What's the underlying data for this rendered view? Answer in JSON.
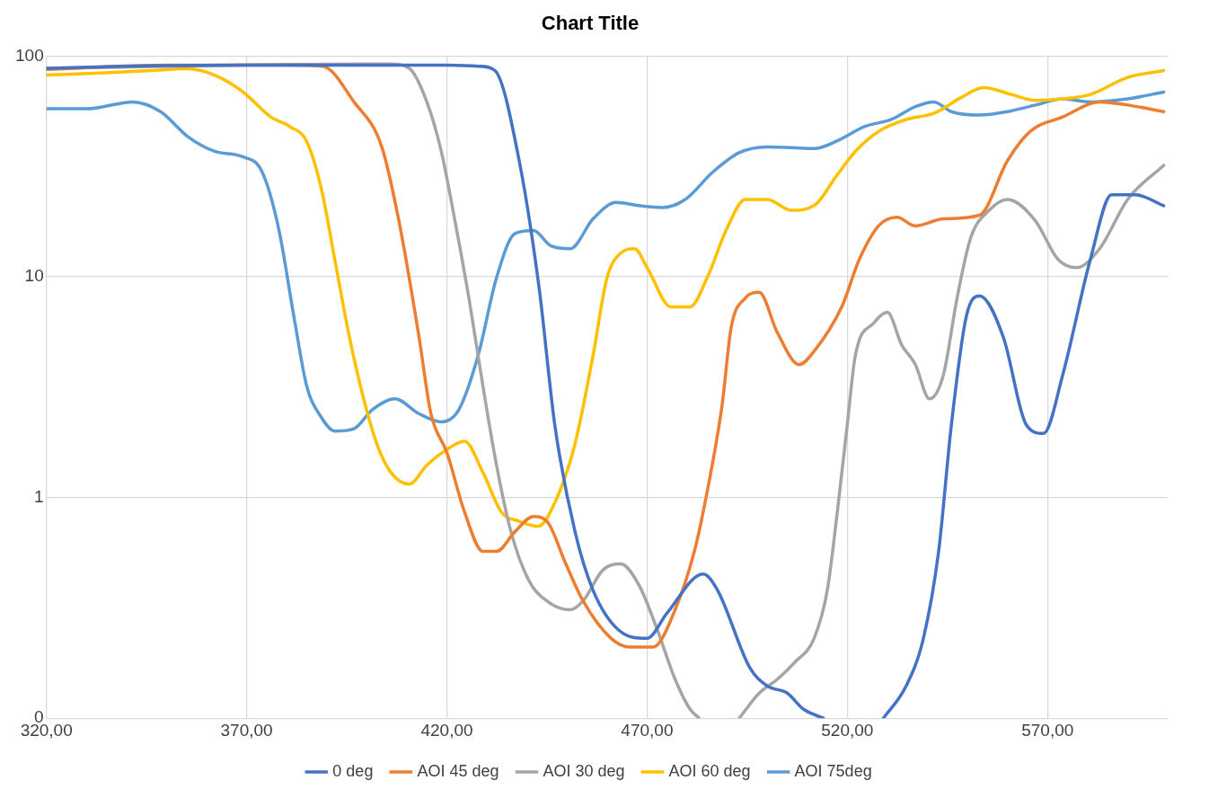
{
  "chart_data": {
    "type": "line",
    "title": "Chart Title",
    "log": "y",
    "grid": true,
    "legend": "bottom",
    "xlim": [
      320,
      600
    ],
    "xticks": [
      {
        "value": 320,
        "label": "320,00"
      },
      {
        "value": 370,
        "label": "370,00"
      },
      {
        "value": 420,
        "label": "420,00"
      },
      {
        "value": 470,
        "label": "470,00"
      },
      {
        "value": 520,
        "label": "520,00"
      },
      {
        "value": 570,
        "label": "570,00"
      }
    ],
    "ylim": [
      0.1,
      100
    ],
    "yticks": [
      {
        "value": 0.1,
        "label": "0"
      },
      1,
      10,
      100
    ],
    "series": [
      {
        "name": "0 deg",
        "color": "#4472c4",
        "x": [
          320,
          340,
          380,
          420,
          428,
          432,
          438,
          443,
          447,
          452,
          456.5,
          463,
          470,
          475,
          484,
          487.6,
          495.6,
          500,
          505,
          509,
          514,
          518,
          522,
          526,
          529,
          534.7,
          539,
          542.8,
          546,
          549.7,
          553,
          559,
          564.6,
          569,
          573.8,
          580.7,
          586,
          592,
          599
        ],
        "values": [
          88,
          90,
          91,
          91,
          90,
          86,
          34,
          9,
          2.1,
          0.7,
          0.38,
          0.25,
          0.23,
          0.3,
          0.45,
          0.38,
          0.17,
          0.14,
          0.13,
          0.11,
          0.1,
          null,
          null,
          null,
          0.1,
          0.14,
          0.23,
          0.57,
          2.15,
          6.6,
          8.2,
          5.3,
          2.15,
          1.95,
          3.6,
          12,
          23.5,
          23.5,
          21
        ]
      },
      {
        "name": "AOI 45 deg",
        "color": "#ed7d31",
        "x": [
          320,
          350,
          380,
          389,
          396.8,
          403.7,
          408,
          413,
          416,
          420,
          424.4,
          429,
          432.4,
          437,
          441.6,
          445,
          449.7,
          454,
          461,
          465.7,
          471.5,
          477,
          481.8,
          484,
          488.7,
          491,
          494.5,
          498,
          502.5,
          508,
          511.7,
          518.6,
          523,
          527.8,
          532.4,
          537,
          544,
          553,
          560,
          565.7,
          573.8,
          583,
          590,
          599
        ],
        "values": [
          87,
          91,
          91,
          90,
          62,
          39,
          18,
          5.4,
          2.4,
          1.6,
          0.86,
          0.57,
          0.57,
          0.7,
          0.82,
          0.78,
          0.5,
          0.34,
          0.23,
          0.21,
          0.21,
          0.31,
          0.57,
          0.86,
          2.6,
          5.9,
          8,
          8.5,
          5.6,
          4,
          4.6,
          7.3,
          12,
          17,
          18.6,
          17,
          18.3,
          19,
          33.6,
          45.6,
          53,
          62,
          60,
          56
        ]
      },
      {
        "name": "AOI 30 deg",
        "color": "#a5a5a5",
        "x": [
          320,
          400,
          406,
          410.6,
          415,
          418.6,
          422,
          425.5,
          429,
          432.4,
          436,
          440.5,
          446,
          450.8,
          454,
          459,
          463.4,
          468,
          472.6,
          477,
          480.7,
          483,
          486,
          490,
          493,
          498,
          502.5,
          507,
          511.7,
          515,
          517.5,
          520,
          522,
          526.7,
          530,
          533.6,
          537,
          540.5,
          544,
          547.4,
          550.8,
          555.4,
          560,
          566.9,
          572.6,
          577.2,
          583,
          590,
          599
        ],
        "values": [
          88,
          92,
          92,
          88,
          62,
          37,
          18,
          8,
          3.2,
          1.4,
          0.7,
          0.42,
          0.33,
          0.31,
          0.34,
          0.47,
          0.5,
          0.4,
          0.25,
          0.15,
          0.11,
          0.1,
          null,
          null,
          0.1,
          0.13,
          0.15,
          0.18,
          0.23,
          0.38,
          0.86,
          2.15,
          4.4,
          6.2,
          6.9,
          4.9,
          4,
          2.8,
          3.6,
          8,
          15,
          20,
          22.4,
          18,
          12,
          11,
          13.4,
          22.4,
          32
        ]
      },
      {
        "name": "AOI 60 deg",
        "color": "#ffc000",
        "x": [
          320,
          334.7,
          346,
          355,
          362,
          369,
          376,
          380.7,
          385,
          388.7,
          392,
          395.6,
          399,
          402.5,
          406,
          410.6,
          415,
          420,
          424.4,
          429,
          433.6,
          438,
          442.8,
          447,
          452,
          456.5,
          460,
          463.4,
          466.9,
          470,
          476,
          480.7,
          485,
          489.9,
          494.5,
          500,
          506,
          511.7,
          517.5,
          522,
          527.8,
          534.7,
          541.6,
          548.5,
          554,
          561,
          567,
          573.8,
          580.7,
          590,
          599
        ],
        "values": [
          82,
          84,
          86,
          87.6,
          82,
          69,
          53,
          48,
          41,
          24.8,
          12,
          5.4,
          2.9,
          1.75,
          1.3,
          1.15,
          1.4,
          1.65,
          1.8,
          1.3,
          0.86,
          0.78,
          0.74,
          0.95,
          1.75,
          4.4,
          9.9,
          12.8,
          13.4,
          11,
          7.3,
          7.3,
          9.9,
          16.5,
          22.4,
          22.4,
          20,
          21,
          29,
          37,
          45.6,
          51.6,
          55,
          65,
          72,
          67,
          63,
          64,
          67,
          80,
          86
        ]
      },
      {
        "name": "AOI 75deg",
        "color": "#5b9bd5",
        "x": [
          320,
          330,
          341.6,
          348.5,
          355.4,
          362,
          369,
          373.8,
          378,
          381.8,
          385,
          388.7,
          392,
          396.8,
          401.4,
          407,
          413,
          418.6,
          423,
          427.8,
          432.4,
          437,
          441.6,
          446,
          450.8,
          456.5,
          462.3,
          468,
          473.8,
          479.5,
          486.4,
          493,
          500,
          506,
          511.7,
          517.5,
          524.4,
          531,
          537,
          541.6,
          546,
          553,
          560,
          567,
          573.8,
          580.7,
          590,
          599
        ],
        "values": [
          57.7,
          57.7,
          62,
          56,
          43,
          37,
          35,
          30,
          16.5,
          6.6,
          3.2,
          2.3,
          2,
          2.05,
          2.5,
          2.8,
          2.4,
          2.2,
          2.5,
          4.4,
          9.9,
          15.7,
          16.2,
          13.8,
          13.4,
          18.3,
          21.7,
          21,
          20.6,
          22.4,
          29.8,
          36.5,
          38.8,
          38.5,
          38.1,
          41.3,
          48,
          51.6,
          59,
          62,
          56,
          54,
          56,
          60,
          64,
          62,
          64,
          68.7
        ]
      }
    ]
  }
}
